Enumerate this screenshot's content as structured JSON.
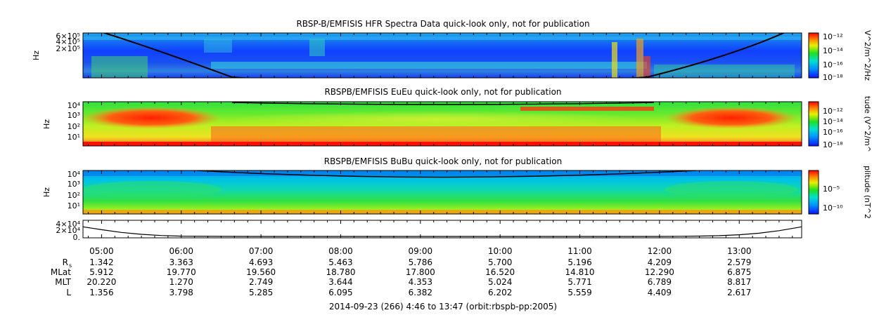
{
  "chart_data": [
    {
      "type": "heatmap",
      "title": "RBSP-B/EMFISIS  HFR Spectra Data quick-look only, not for publication",
      "ylabel": "Hz",
      "y_ticks": [
        "6×10⁵",
        "4×10⁵",
        "2×10⁵"
      ],
      "colorbar_label": "V^2/m^2/Hz",
      "colorbar_ticks": [
        "10⁻¹²",
        "10⁻¹⁴",
        "10⁻¹⁶",
        "10⁻¹⁸"
      ],
      "colorbar_exponents": [
        -12,
        -14,
        -16,
        -18
      ]
    },
    {
      "type": "heatmap",
      "title": "RBSPB/EMFISIS  EuEu quick-look only, not for publication",
      "ylabel": "Hz",
      "y_ticks": [
        "10⁴",
        "10³",
        "10²",
        "10¹"
      ],
      "colorbar_label": "tude (V^2/m^",
      "colorbar_ticks": [
        "10⁻¹²",
        "10⁻¹⁴",
        "10⁻¹⁶",
        "10⁻¹⁸"
      ],
      "colorbar_exponents": [
        -12,
        -14,
        -16,
        -18
      ]
    },
    {
      "type": "heatmap",
      "title": "RBSPB/EMFISIS  BuBu quick-look only, not for publication",
      "ylabel": "Hz",
      "y_ticks": [
        "10⁴",
        "10³",
        "10²",
        "10¹"
      ],
      "colorbar_label": "plitude (nT^2",
      "colorbar_ticks": [
        "10⁻⁵",
        "10⁻¹⁰"
      ],
      "colorbar_exponents": [
        -5,
        -10
      ]
    },
    {
      "type": "line",
      "y_ticks": [
        "4×10⁴",
        "2×10⁴",
        "0."
      ],
      "y_tick_values": [
        40000,
        20000,
        0
      ],
      "ylim": [
        0,
        46000
      ],
      "x_hours": [
        4.767,
        5.0,
        5.25,
        5.5,
        5.75,
        6.0,
        6.5,
        7.0,
        8.0,
        9.0,
        10.0,
        11.0,
        11.75,
        12.0,
        12.25,
        12.5,
        12.75,
        13.0,
        13.25,
        13.5,
        13.783
      ],
      "values": [
        30000,
        21000,
        12500,
        6500,
        2800,
        900,
        150,
        0,
        0,
        0,
        0,
        0,
        0,
        60,
        400,
        1100,
        2400,
        5200,
        10000,
        18000,
        30000
      ]
    }
  ],
  "time_axis": {
    "start_hour": 4.767,
    "end_hour": 13.783,
    "tick_labels": [
      "05:00",
      "06:00",
      "07:00",
      "08:00",
      "09:00",
      "10:00",
      "11:00",
      "12:00",
      "13:00"
    ],
    "tick_hours": [
      5,
      6,
      7,
      8,
      9,
      10,
      11,
      12,
      13
    ]
  },
  "ephemeris": {
    "rows": [
      {
        "label": "R",
        "sub": "s",
        "values": [
          "1.342",
          "3.363",
          "4.693",
          "5.463",
          "5.786",
          "5.700",
          "5.196",
          "4.209",
          "2.579"
        ]
      },
      {
        "label": "MLat",
        "sub": "",
        "values": [
          "5.912",
          "19.770",
          "19.560",
          "18.780",
          "17.800",
          "16.520",
          "14.810",
          "12.290",
          "6.875"
        ]
      },
      {
        "label": "MLT",
        "sub": "",
        "values": [
          "20.220",
          "1.270",
          "2.749",
          "3.644",
          "4.353",
          "5.024",
          "5.771",
          "6.789",
          "8.817"
        ]
      },
      {
        "label": "L",
        "sub": "",
        "values": [
          "1.356",
          "3.798",
          "5.285",
          "6.095",
          "6.382",
          "6.202",
          "5.559",
          "4.409",
          "2.617"
        ]
      }
    ]
  },
  "footer": "2014-09-23 (266) 4:46 to 13:47 (orbit:rbspb-pp:2005)"
}
